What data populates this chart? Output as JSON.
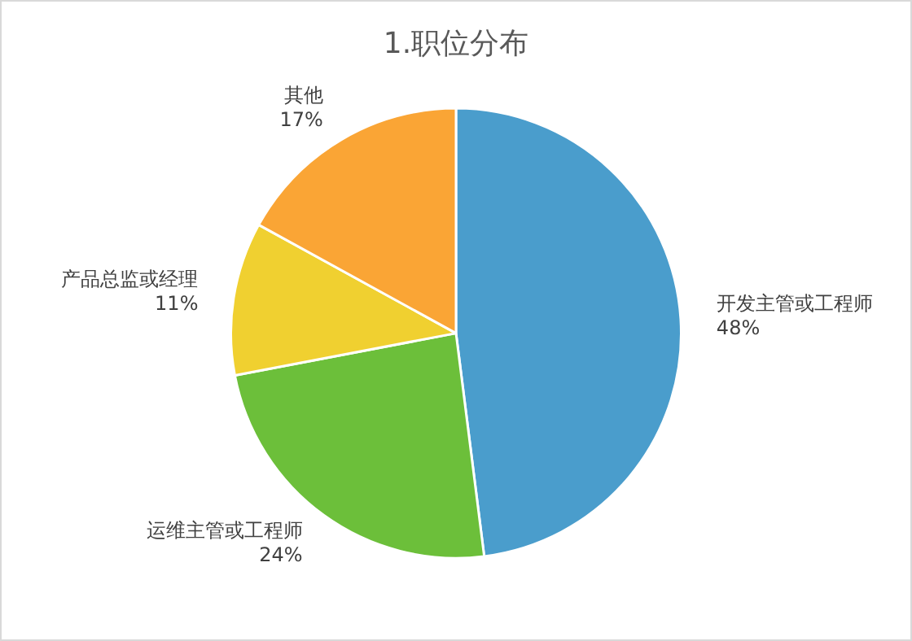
{
  "chart_data": {
    "type": "pie",
    "title": "1.职位分布",
    "categories": [
      "开发主管或工程师",
      "运维主管或工程师",
      "产品总监或经理",
      "其他"
    ],
    "values": [
      48,
      24,
      11,
      17
    ],
    "value_labels": [
      "48%",
      "24%",
      "11%",
      "17%"
    ],
    "colors": [
      "#4a9dcc",
      "#6cbf3a",
      "#f0d030",
      "#faa535"
    ]
  }
}
